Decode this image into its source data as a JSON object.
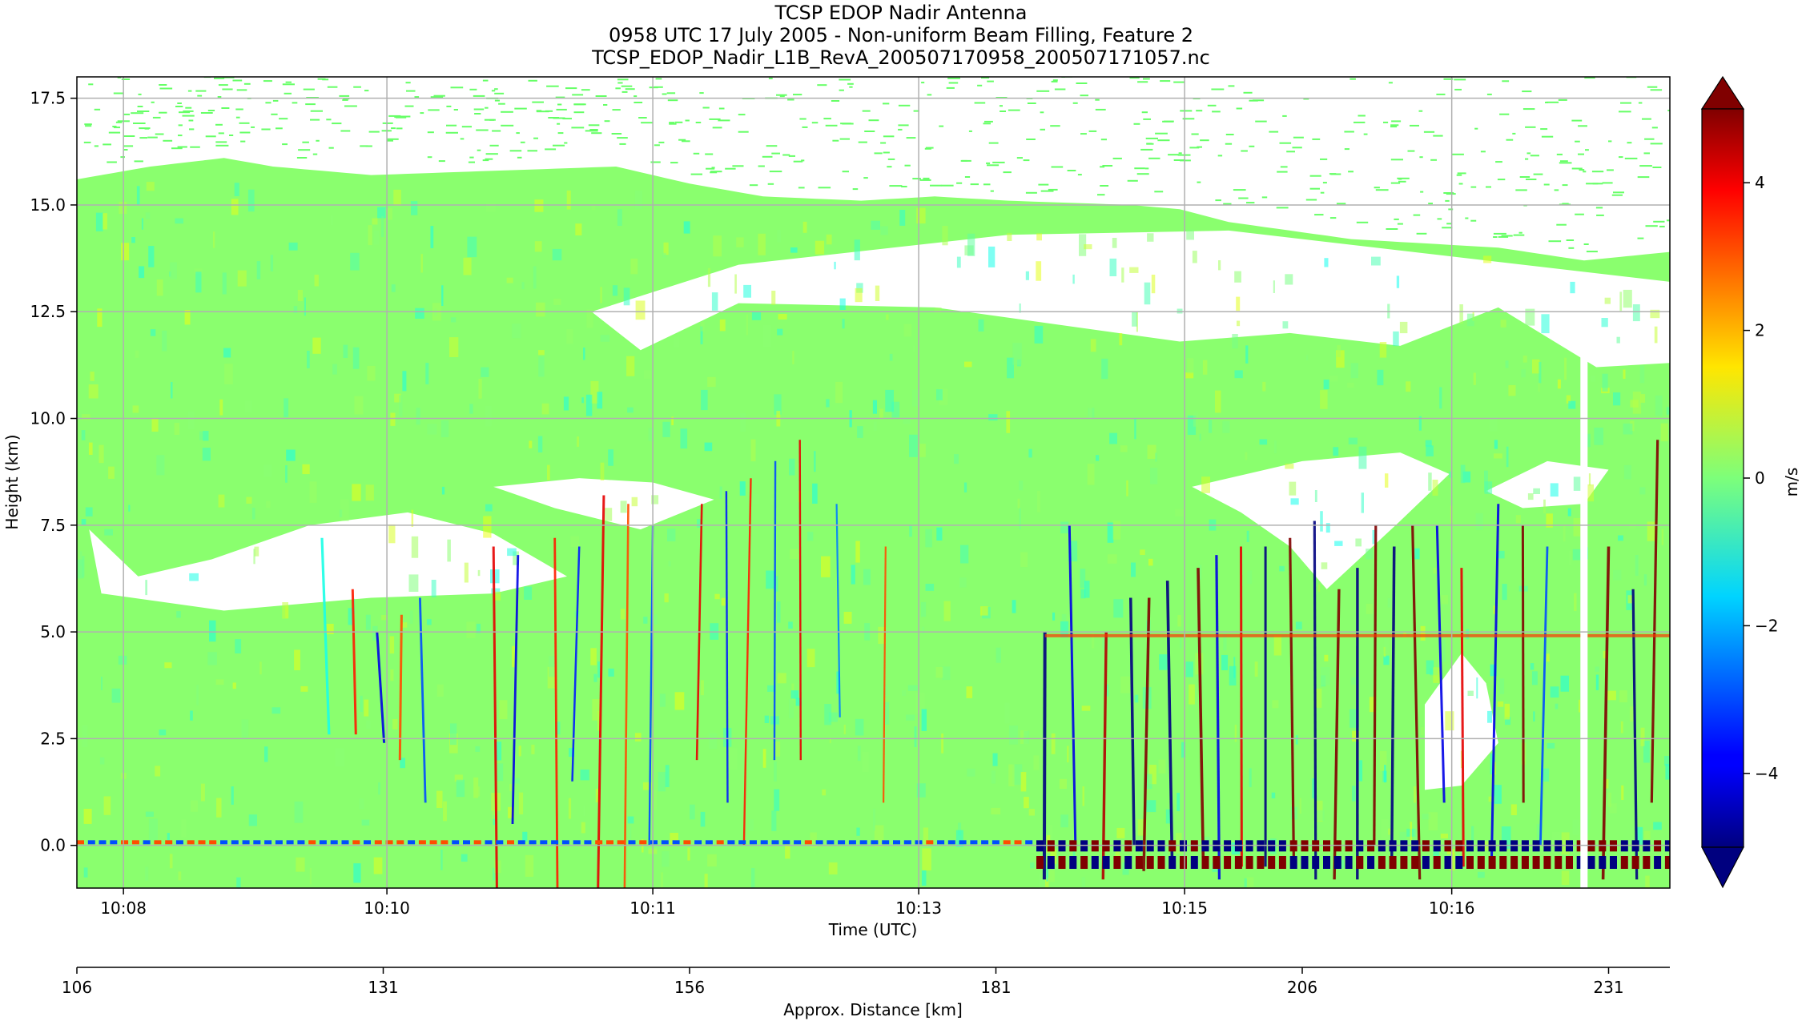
{
  "chart_data": {
    "type": "heatmap",
    "title": [
      "TCSP EDOP Nadir Antenna",
      "0958 UTC 17 July 2005 - Non-uniform Beam Filling, Feature 2",
      "TCSP_EDOP_Nadir_L1B_RevA_200507170958_200507171057.nc"
    ],
    "xlabel": "Time (UTC)",
    "ylabel": "Height (km)",
    "secondary_xlabel": "Approx. Distance [km]",
    "colorbar_label": "m/s",
    "ylim": [
      -1.0,
      18.0
    ],
    "yticks": [
      0.0,
      2.5,
      5.0,
      7.5,
      10.0,
      12.5,
      15.0,
      17.5
    ],
    "ytick_labels": [
      "0.0",
      "2.5",
      "5.0",
      "7.5",
      "10.0",
      "12.5",
      "15.0",
      "17.5"
    ],
    "xlim": [
      106.0,
      236.0
    ],
    "xtick_positions": [
      109.8,
      131.3,
      153.0,
      174.7,
      196.4,
      218.2
    ],
    "xtick_labels": [
      "10:08",
      "10:10",
      "10:11",
      "10:13",
      "10:15",
      "10:16"
    ],
    "distance_ticks": [
      106,
      131,
      156,
      181,
      206,
      231
    ],
    "distance_tick_labels": [
      "106",
      "131",
      "156",
      "181",
      "206",
      "231"
    ],
    "vlim": [
      -5,
      5
    ],
    "colorbar_ticks": [
      -4,
      -2,
      0,
      2,
      4
    ],
    "colorbar_tick_labels": [
      "−4",
      "−2",
      "0",
      "2",
      "4"
    ],
    "colormap": "jet",
    "grid": true
  }
}
